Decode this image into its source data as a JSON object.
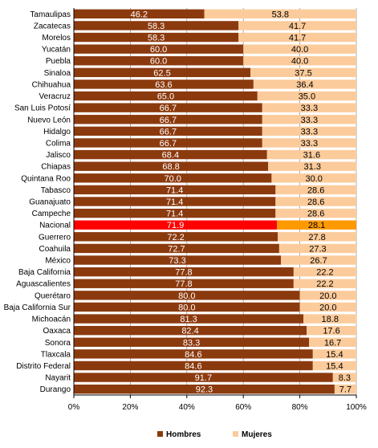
{
  "chart_data": {
    "type": "bar",
    "orientation": "horizontal",
    "stacked": true,
    "percent": true,
    "categories": [
      "Tamaulipas",
      "Zacatecas",
      "Morelos",
      "Yucatán",
      "Puebla",
      "Sinaloa",
      "Chihuahua",
      "Veracruz",
      "San Luis Potosí",
      "Nuevo León",
      "Hidalgo",
      "Colima",
      "Jalisco",
      "Chiapas",
      "Quintana Roo",
      "Tabasco",
      "Guanajuato",
      "Campeche",
      "Nacional",
      "Guerrero",
      "Coahuila",
      "México",
      "Baja California",
      "Aguascalientes",
      "Querétaro",
      "Baja California Sur",
      "Michoacán",
      "Oaxaca",
      "Sonora",
      "Tlaxcala",
      "Distrito Federal",
      "Nayarit",
      "Durango"
    ],
    "series": [
      {
        "name": "Hombres",
        "color": "#8B3A0E",
        "values": [
          46.2,
          58.3,
          58.3,
          60.0,
          60.0,
          62.5,
          63.6,
          65.0,
          66.7,
          66.7,
          66.7,
          66.7,
          68.4,
          68.8,
          70.0,
          71.4,
          71.4,
          71.4,
          71.9,
          72.2,
          72.7,
          73.3,
          77.8,
          77.8,
          80.0,
          80.0,
          81.3,
          82.4,
          83.3,
          84.6,
          84.6,
          91.7,
          92.3
        ]
      },
      {
        "name": "Mujeres",
        "color": "#FCCB9B",
        "values": [
          53.8,
          41.7,
          41.7,
          40.0,
          40.0,
          37.5,
          36.4,
          35.0,
          33.3,
          33.3,
          33.3,
          33.3,
          31.6,
          31.3,
          30.0,
          28.6,
          28.6,
          28.6,
          28.1,
          27.8,
          27.3,
          26.7,
          22.2,
          22.2,
          20.0,
          20.0,
          18.8,
          17.6,
          16.7,
          15.4,
          15.4,
          8.3,
          7.7
        ]
      }
    ],
    "highlight": {
      "category": "Nacional",
      "colors": {
        "Hombres": "#FF0000",
        "Mujeres": "#FF9900"
      }
    },
    "x_ticks": [
      "0%",
      "20%",
      "40%",
      "60%",
      "80%",
      "100%"
    ],
    "xlim": [
      0,
      100
    ],
    "grid": true,
    "legend": {
      "position": "bottom"
    }
  }
}
